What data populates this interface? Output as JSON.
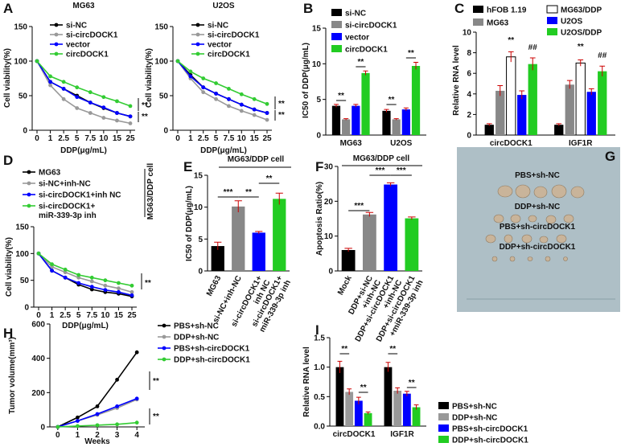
{
  "chart_data": [
    {
      "panel": "A",
      "type": "line",
      "title": "MG63",
      "y_label": "Cell viability(%)",
      "x_label": "DDP(μg/mL)",
      "categories": [
        "0",
        "1",
        "2.5",
        "5",
        "7.5",
        "10",
        "15",
        "25"
      ],
      "ylim": [
        0,
        150
      ],
      "yticks": [
        0,
        50,
        100,
        150
      ],
      "series": [
        {
          "name": "si-NC",
          "color": "#000000",
          "values": [
            100,
            70,
            60,
            50,
            40,
            32,
            25,
            20
          ]
        },
        {
          "name": "si-circDOCK1",
          "color": "#999999",
          "values": [
            100,
            65,
            45,
            32,
            25,
            18,
            14,
            10
          ]
        },
        {
          "name": "vector",
          "color": "#0000ff",
          "values": [
            100,
            70,
            60,
            48,
            40,
            33,
            25,
            20
          ]
        },
        {
          "name": "circDOCK1",
          "color": "#33cc33",
          "values": [
            100,
            78,
            70,
            62,
            55,
            48,
            42,
            35
          ]
        }
      ],
      "annotations": [
        "**",
        "**"
      ]
    },
    {
      "type": "line",
      "title": "U2OS",
      "y_label": "Cell viability(%)",
      "x_label": "DDP(μg/mL)",
      "categories": [
        "0",
        "1",
        "2.5",
        "5",
        "7.5",
        "10",
        "15",
        "25"
      ],
      "ylim": [
        0,
        150
      ],
      "yticks": [
        0,
        50,
        100,
        150
      ],
      "series": [
        {
          "name": "si-NC",
          "color": "#000000",
          "values": [
            100,
            80,
            62,
            53,
            45,
            37,
            30,
            25
          ]
        },
        {
          "name": "si-circDOCK1",
          "color": "#999999",
          "values": [
            100,
            75,
            55,
            45,
            35,
            28,
            22,
            15
          ]
        },
        {
          "name": "vector",
          "color": "#0000ff",
          "values": [
            100,
            78,
            62,
            53,
            45,
            37,
            30,
            25
          ]
        },
        {
          "name": "circDOCK1",
          "color": "#33cc33",
          "values": [
            100,
            85,
            75,
            68,
            60,
            52,
            45,
            38
          ]
        }
      ],
      "annotations": [
        "**",
        "**"
      ]
    },
    {
      "panel": "B",
      "type": "bar",
      "y_label": "IC50 of DDP(μg/mL)",
      "categories": [
        "MG63",
        "U2OS"
      ],
      "ylim": [
        0,
        15
      ],
      "yticks": [
        0,
        5,
        10,
        15
      ],
      "series": [
        {
          "name": "si-NC",
          "color": "#000000",
          "values": [
            4.1,
            3.4
          ],
          "errors": [
            0.2,
            0.2
          ]
        },
        {
          "name": "si-circDOCK1",
          "color": "#888888",
          "values": [
            2.2,
            2.2
          ],
          "errors": [
            0.1,
            0.1
          ]
        },
        {
          "name": "vector",
          "color": "#0000ff",
          "values": [
            4.1,
            3.6
          ],
          "errors": [
            0.2,
            0.2
          ]
        },
        {
          "name": "circDOCK1",
          "color": "#22cc22",
          "values": [
            8.7,
            9.7
          ],
          "errors": [
            0.3,
            0.5
          ]
        }
      ],
      "annotations": [
        "**",
        "**",
        "**",
        "**"
      ]
    },
    {
      "panel": "C",
      "type": "bar",
      "y_label": "Relative RNA level",
      "categories": [
        "circDOCK1",
        "IGF1R"
      ],
      "ylim": [
        0,
        10
      ],
      "yticks": [
        0,
        2,
        4,
        6,
        8,
        10
      ],
      "series": [
        {
          "name": "hFOB 1.19",
          "color": "#000000",
          "values": [
            1.0,
            1.0
          ],
          "errors": [
            0.1,
            0.1
          ]
        },
        {
          "name": "MG63",
          "color": "#888888",
          "values": [
            4.3,
            4.9
          ],
          "errors": [
            0.5,
            0.4
          ]
        },
        {
          "name": "MG63/DDP",
          "color": "#ffffff",
          "values": [
            7.6,
            7.0
          ],
          "errors": [
            0.5,
            0.3
          ]
        },
        {
          "name": "U2OS",
          "color": "#0000ff",
          "values": [
            3.9,
            4.2
          ],
          "errors": [
            0.4,
            0.3
          ]
        },
        {
          "name": "U2OS/DDP",
          "color": "#22cc22",
          "values": [
            6.9,
            6.2
          ],
          "errors": [
            0.6,
            0.5
          ]
        }
      ],
      "annotations": [
        "**",
        "##",
        "**",
        "##"
      ]
    },
    {
      "panel": "D",
      "type": "line",
      "y_label": "Cell viability(%)",
      "x_label": "DDP(μg/mL)",
      "side_label": "MG63/DDP cell",
      "categories": [
        "0",
        "1",
        "2.5",
        "5",
        "7.5",
        "10",
        "15",
        "25"
      ],
      "ylim": [
        0,
        150
      ],
      "yticks": [
        0,
        50,
        100,
        150
      ],
      "series": [
        {
          "name": "MG63",
          "color": "#000000",
          "values": [
            100,
            68,
            55,
            42,
            33,
            28,
            25,
            20
          ]
        },
        {
          "name": "si-NC+inh-NC",
          "color": "#999999",
          "values": [
            100,
            75,
            65,
            55,
            48,
            40,
            35,
            28
          ]
        },
        {
          "name": "si-circDOCK1+inh NC",
          "color": "#0000ff",
          "values": [
            100,
            68,
            55,
            45,
            38,
            32,
            28,
            22
          ]
        },
        {
          "name": "si-circDOCK1+\nmiR-339-3p inh",
          "color": "#33cc33",
          "values": [
            100,
            80,
            70,
            60,
            55,
            50,
            45,
            40
          ]
        }
      ],
      "annotations": [
        "**"
      ]
    },
    {
      "panel": "E",
      "type": "bar",
      "title": "MG63/DDP cell",
      "y_label": "IC50 of DDP(μg/mL)",
      "categories": [
        "MG63",
        "si-NC+inh-NC",
        "si-circDOCK1+\ninh NC",
        "si-circDOCK1+\nmiR-339-3p inh"
      ],
      "values": [
        3.9,
        10.1,
        6.0,
        11.3
      ],
      "errors": [
        0.6,
        0.9,
        0.2,
        0.9
      ],
      "colors": [
        "#000000",
        "#888888",
        "#0000ff",
        "#22cc22"
      ],
      "ylim": [
        0,
        15
      ],
      "yticks": [
        0,
        5,
        10,
        15
      ],
      "annotations": [
        "***",
        "**",
        "**"
      ]
    },
    {
      "panel": "F",
      "type": "bar",
      "title": "MG63/DDP cell",
      "y_label": "Apoptosis Ratio(%)",
      "categories": [
        "Mock",
        "DDP+si-NC\n+inh-NC",
        "DDP+si-circDOCK1\n+inh-NC",
        "DDP+si-circDOCK1\n+miR-339-3p inh"
      ],
      "values": [
        6.0,
        16.2,
        24.8,
        15.1
      ],
      "errors": [
        0.5,
        0.6,
        0.5,
        0.4
      ],
      "colors": [
        "#000000",
        "#888888",
        "#0000ff",
        "#22cc22"
      ],
      "ylim": [
        0,
        30
      ],
      "yticks": [
        0,
        10,
        20,
        30
      ],
      "annotations": [
        "***",
        "***",
        "***"
      ]
    },
    {
      "panel": "H",
      "type": "line",
      "y_label": "Tumor volume(mm³)",
      "x_label": "Weeks",
      "x": [
        0,
        1,
        2,
        3,
        4
      ],
      "xlim": [
        -0.4,
        4.4
      ],
      "xticks": [
        0,
        1,
        2,
        3,
        4
      ],
      "ylim": [
        0,
        600
      ],
      "yticks": [
        0,
        200,
        400,
        600
      ],
      "series": [
        {
          "name": "PBS+sh-NC",
          "color": "#000000",
          "values": [
            0,
            55,
            120,
            275,
            435
          ]
        },
        {
          "name": "DDP+sh-NC",
          "color": "#999999",
          "values": [
            0,
            35,
            70,
            110,
            160
          ]
        },
        {
          "name": "PBS+sh-circDOCK1",
          "color": "#0000ff",
          "values": [
            0,
            35,
            75,
            120,
            165
          ]
        },
        {
          "name": "DDP+sh-circDOCK1",
          "color": "#33cc33",
          "values": [
            0,
            5,
            10,
            15,
            25
          ]
        }
      ],
      "annotations": [
        "**",
        "**"
      ]
    },
    {
      "panel": "I",
      "type": "bar",
      "y_label": "Relative RNA level",
      "categories": [
        "circDOCK1",
        "IGF1R"
      ],
      "ylim": [
        0,
        1.5
      ],
      "yticks": [
        {
          "value": 0,
          "label": "0.0"
        },
        0.5,
        {
          "value": 1,
          "label": "1.0"
        },
        1.5
      ],
      "series": [
        {
          "name": "PBS+sh-NC",
          "color": "#000000",
          "values": [
            1.0,
            1.0
          ],
          "errors": [
            0.1,
            0.08
          ]
        },
        {
          "name": "DDP+sh-NC",
          "color": "#999999",
          "values": [
            0.58,
            0.6
          ],
          "errors": [
            0.05,
            0.05
          ]
        },
        {
          "name": "PBS+sh-circDOCK1",
          "color": "#0000ff",
          "values": [
            0.43,
            0.55
          ],
          "errors": [
            0.06,
            0.04
          ]
        },
        {
          "name": "DDP+sh-circDOCK1",
          "color": "#22cc22",
          "values": [
            0.22,
            0.32
          ],
          "errors": [
            0.02,
            0.04
          ]
        }
      ],
      "annotations": [
        "**",
        "**",
        "**",
        "**"
      ]
    }
  ],
  "photo": {
    "panel": "G",
    "labels": [
      "PBS+sh-NC",
      "DDP+sh-NC",
      "PBS+sh-circDOCK1",
      "DDP+sh-circDOCK1"
    ]
  }
}
